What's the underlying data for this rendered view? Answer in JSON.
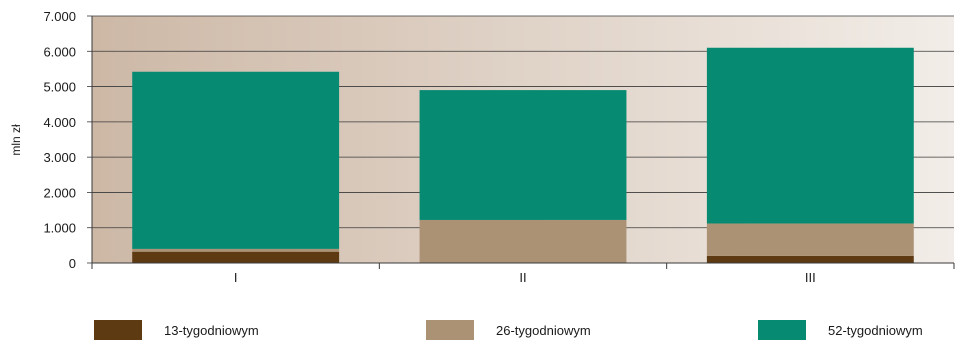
{
  "chart_data": {
    "type": "bar",
    "stacked": true,
    "categories": [
      "I",
      "II",
      "III"
    ],
    "series": [
      {
        "name": "13-tygodniowym",
        "values": [
          320,
          0,
          200
        ],
        "color": "#5e3a12"
      },
      {
        "name": "26-tygodniowym",
        "values": [
          80,
          1220,
          920
        ],
        "color": "#ab9275"
      },
      {
        "name": "52-tygodniowym",
        "values": [
          5020,
          3680,
          4980
        ],
        "color": "#078a72"
      }
    ],
    "title": "",
    "xlabel": "",
    "ylabel": "mln zł",
    "ylim": [
      0,
      7000
    ],
    "yticks": [
      0,
      1000,
      2000,
      3000,
      4000,
      5000,
      6000,
      7000
    ],
    "ytick_labels": [
      "0",
      "1.000",
      "2.000",
      "3.000",
      "4.000",
      "5.000",
      "6.000",
      "7.000"
    ],
    "grid": true,
    "legend_position": "bottom",
    "plot_background": {
      "from": "#cdb8a6",
      "to": "#f2ede8"
    }
  }
}
